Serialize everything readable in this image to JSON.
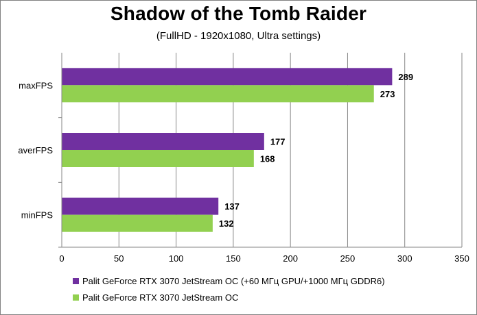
{
  "title": "Shadow of the Tomb Raider",
  "subtitle": "(FullHD - 1920x1080, Ultra settings)",
  "chart_data": {
    "type": "bar",
    "orientation": "horizontal",
    "categories": [
      "maxFPS",
      "averFPS",
      "minFPS"
    ],
    "series": [
      {
        "name": "Palit GeForce RTX 3070 JetStream OC (+60 МГц GPU/+1000 МГц GDDR6)",
        "values": [
          289,
          177,
          137
        ],
        "color": "#7030a0"
      },
      {
        "name": "Palit GeForce RTX 3070 JetStream OC",
        "values": [
          273,
          168,
          132
        ],
        "color": "#92d050"
      }
    ],
    "xlim": [
      0,
      350
    ],
    "xticks": [
      0,
      50,
      100,
      150,
      200,
      250,
      300,
      350
    ],
    "grid": true,
    "legend_position": "bottom"
  }
}
